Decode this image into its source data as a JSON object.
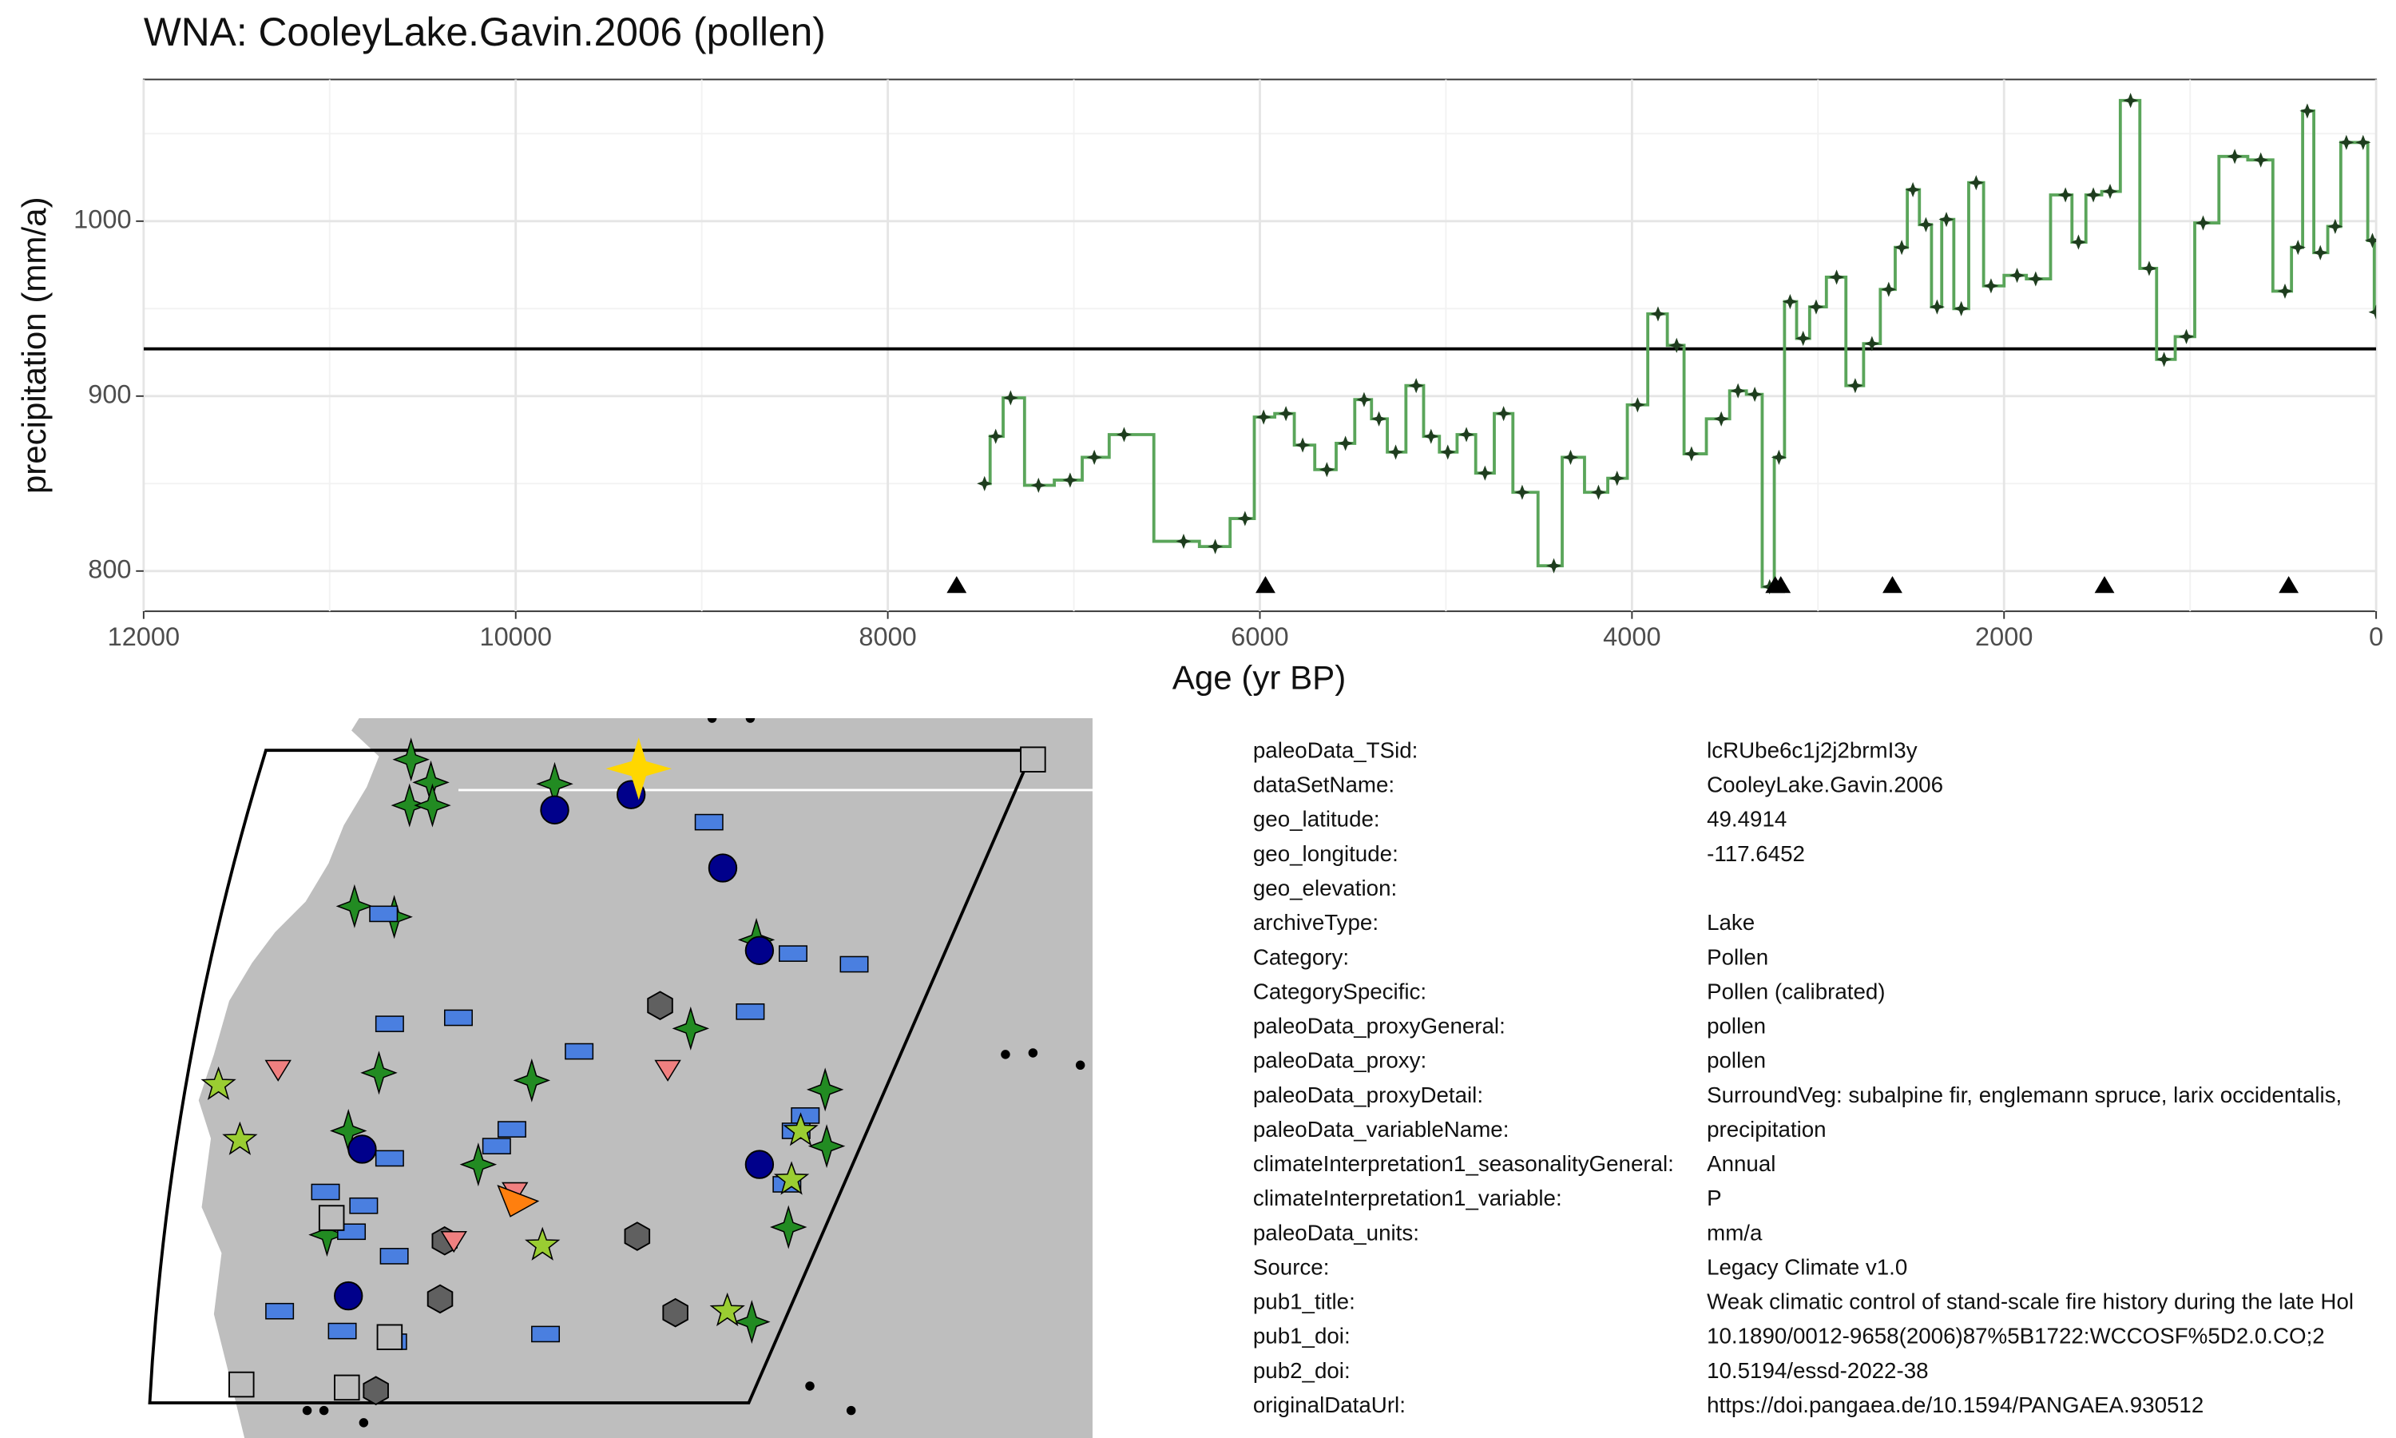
{
  "chart_data": {
    "type": "step-line",
    "title": "WNA: CooleyLake.Gavin.2006 (pollen)",
    "x_label": "Age (yr BP)",
    "y_label": "precipitation (mm/a)",
    "xlim": [
      12000,
      0
    ],
    "xticks": [
      12000,
      10000,
      8000,
      6000,
      4000,
      2000,
      0
    ],
    "ylim": [
      777,
      1081
    ],
    "yticks": [
      800,
      900,
      1000
    ],
    "grid": true,
    "color": "#5aa55a",
    "marker_color": "#1e3d1e",
    "x": [
      7480,
      7420,
      7340,
      7190,
      7020,
      6890,
      6730,
      6410,
      6240,
      6080,
      5980,
      5860,
      5770,
      5640,
      5540,
      5440,
      5360,
      5270,
      5160,
      5080,
      4990,
      4890,
      4790,
      4690,
      4590,
      4420,
      4330,
      4180,
      4080,
      3970,
      3860,
      3760,
      3680,
      3520,
      3430,
      3340,
      3260,
      3210,
      3150,
      3080,
      3010,
      2900,
      2800,
      2710,
      2620,
      2550,
      2490,
      2420,
      2360,
      2310,
      2230,
      2150,
      2070,
      1930,
      1830,
      1670,
      1600,
      1520,
      1430,
      1320,
      1220,
      1140,
      1020,
      930,
      760,
      620,
      490,
      420,
      370,
      300,
      220,
      160,
      70,
      20,
      0
    ],
    "values": [
      850,
      877,
      899,
      849,
      852,
      865,
      878,
      817,
      814,
      830,
      888,
      890,
      872,
      858,
      873,
      898,
      887,
      868,
      906,
      877,
      868,
      878,
      856,
      890,
      845,
      803,
      865,
      845,
      853,
      895,
      947,
      929,
      867,
      887,
      903,
      901,
      791,
      865,
      954,
      933,
      951,
      968,
      906,
      930,
      961,
      985,
      1018,
      998,
      951,
      1001,
      950,
      1022,
      963,
      969,
      967,
      1015,
      988,
      1015,
      1017,
      1069,
      973,
      921,
      934,
      999,
      1037,
      1035,
      960,
      985,
      1063,
      982,
      997,
      1045,
      1045,
      989,
      948
    ],
    "reference_y": 927,
    "control_ages": [
      7630,
      5970,
      3230,
      3200,
      2600,
      1460,
      470
    ]
  },
  "table": {
    "rows": [
      [
        "paleoData_TSid:",
        "lcRUbe6c1j2j2brmI3y"
      ],
      [
        "dataSetName:",
        "CooleyLake.Gavin.2006"
      ],
      [
        "geo_latitude:",
        "49.4914"
      ],
      [
        "geo_longitude:",
        "-117.6452"
      ],
      [
        "geo_elevation:"
      ],
      [
        "archiveType:",
        "Lake"
      ],
      [
        "Category:",
        "Pollen"
      ],
      [
        "CategorySpecific:",
        "Pollen (calibrated)"
      ],
      [
        "paleoData_proxyGeneral:",
        "pollen"
      ],
      [
        "paleoData_proxy:",
        "pollen"
      ],
      [
        "paleoData_proxyDetail:",
        "SurroundVeg: subalpine fir, englemann spruce, larix occidentalis,"
      ],
      [
        "paleoData_variableName:",
        "precipitation"
      ],
      [
        "climateInterpretation1_seasonalityGeneral:",
        "Annual"
      ],
      [
        "climateInterpretation1_variable:",
        "P"
      ],
      [
        "paleoData_units:",
        "mm/a"
      ],
      [
        "Source:",
        "Legacy Climate v1.0"
      ],
      [
        "pub1_title:",
        "Weak climatic control of stand-scale fire history during the late Hol"
      ],
      [
        "pub1_doi:",
        "10.1890/0012-9658(2006)87%5B1722:WCCOSF%5D2.0.CO;2"
      ],
      [
        "pub2_doi:",
        "10.5194/essd-2022-38"
      ],
      [
        "originalDataUrl:",
        "https://doi.pangaea.de/10.1594/PANGAEA.930512"
      ]
    ]
  }
}
